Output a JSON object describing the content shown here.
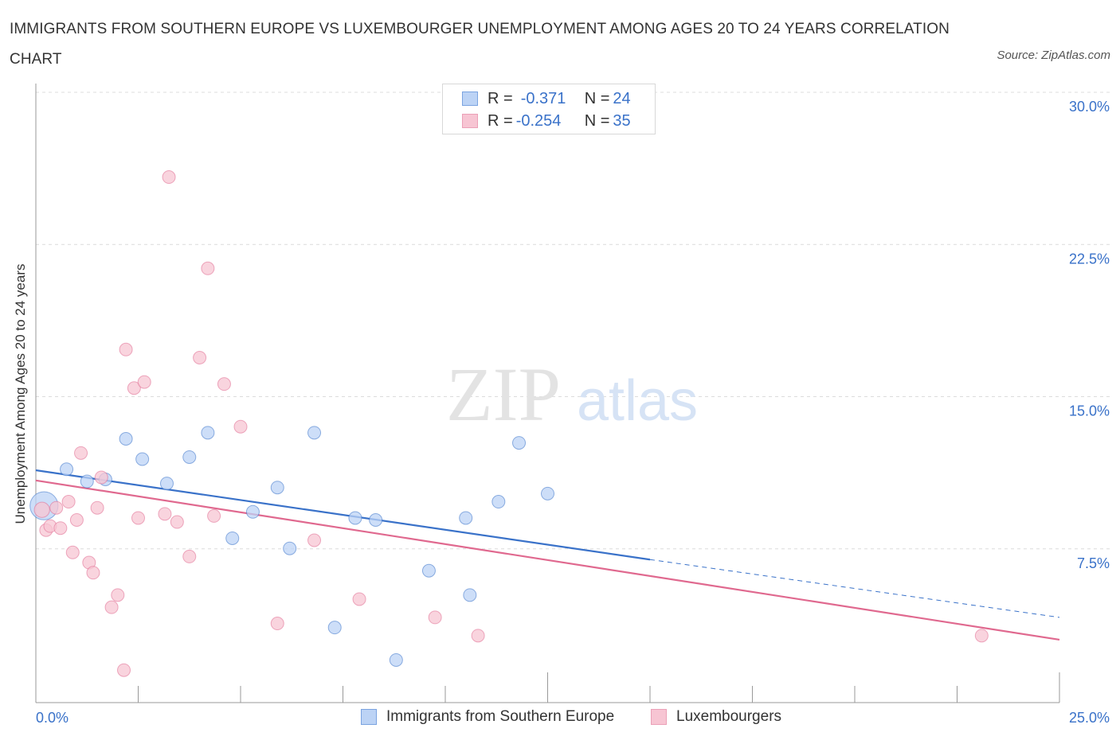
{
  "title": "IMMIGRANTS FROM SOUTHERN EUROPE VS LUXEMBOURGER UNEMPLOYMENT AMONG AGES 20 TO 24 YEARS CORRELATION CHART",
  "source": "Source: ZipAtlas.com",
  "watermark": {
    "zip": "ZIP",
    "atlas": "atlas"
  },
  "colors": {
    "blue": "#3a72c9",
    "blue_fill": "#bcd3f5",
    "pink": "#e0698f",
    "pink_fill": "#f7c5d3",
    "grid": "#dcdcdc",
    "axis": "#999999",
    "tick_text": "#3a72c9"
  },
  "legend": {
    "rows": [
      {
        "r_label": "R = ",
        "r_value": "-0.371",
        "n_label": "N = ",
        "n_value": "24"
      },
      {
        "r_label": "R = ",
        "r_value": "-0.254",
        "n_label": "N = ",
        "n_value": "35"
      }
    ]
  },
  "chart_data": {
    "type": "scatter",
    "xlabel": "",
    "ylabel": "Unemployment Among Ages 20 to 24 years",
    "xlim": [
      0,
      25
    ],
    "ylim": [
      0,
      30
    ],
    "x_tick_labels": [
      {
        "value": 0,
        "label": "0.0%"
      },
      {
        "value": 25,
        "label": "25.0%"
      }
    ],
    "y_tick_labels": [
      {
        "value": 7.5,
        "label": "7.5%"
      },
      {
        "value": 15,
        "label": "15.0%"
      },
      {
        "value": 22.5,
        "label": "22.5%"
      },
      {
        "value": 30,
        "label": "30.0%"
      }
    ],
    "grid": true,
    "legend_position": "top-center",
    "series": [
      {
        "name": "Immigrants from Southern Europe",
        "color": "#3a72c9",
        "fill": "#bcd3f5",
        "points": [
          [
            0.2,
            9.7,
            2.2
          ],
          [
            0.75,
            11.5,
            1
          ],
          [
            1.25,
            10.9,
            1
          ],
          [
            1.7,
            11.0,
            1
          ],
          [
            2.2,
            13.0,
            1
          ],
          [
            2.6,
            12.0,
            1
          ],
          [
            3.2,
            10.8,
            1
          ],
          [
            3.75,
            12.1,
            1
          ],
          [
            4.2,
            13.3,
            1
          ],
          [
            4.8,
            8.1,
            1
          ],
          [
            5.3,
            9.4,
            1
          ],
          [
            5.9,
            10.6,
            1
          ],
          [
            6.2,
            7.6,
            1
          ],
          [
            6.8,
            13.3,
            1
          ],
          [
            7.3,
            3.7,
            1
          ],
          [
            7.8,
            9.1,
            1
          ],
          [
            8.3,
            9.0,
            1
          ],
          [
            8.8,
            2.1,
            1
          ],
          [
            9.6,
            6.5,
            1
          ],
          [
            10.5,
            9.1,
            1
          ],
          [
            10.6,
            5.3,
            1
          ],
          [
            11.3,
            9.9,
            1
          ],
          [
            11.8,
            12.8,
            1
          ],
          [
            12.5,
            10.3,
            1
          ]
        ],
        "trend": {
          "x": [
            0,
            15
          ],
          "y": [
            11.45,
            7.05
          ],
          "dashed_to": [
            25,
            4.2
          ]
        }
      },
      {
        "name": "Luxembourgers",
        "color": "#e0698f",
        "fill": "#f7c5d3",
        "points": [
          [
            0.15,
            9.5,
            1.2
          ],
          [
            0.25,
            8.5,
            1
          ],
          [
            0.35,
            8.7,
            1
          ],
          [
            0.5,
            9.6,
            1
          ],
          [
            0.6,
            8.6,
            1
          ],
          [
            0.8,
            9.9,
            1
          ],
          [
            0.9,
            7.4,
            1
          ],
          [
            1.0,
            9.0,
            1
          ],
          [
            1.1,
            12.3,
            1
          ],
          [
            1.3,
            6.9,
            1
          ],
          [
            1.4,
            6.4,
            1
          ],
          [
            1.5,
            9.6,
            1
          ],
          [
            1.6,
            11.1,
            1
          ],
          [
            1.85,
            4.7,
            1
          ],
          [
            2.0,
            5.3,
            1
          ],
          [
            2.15,
            1.6,
            1
          ],
          [
            2.2,
            17.4,
            1
          ],
          [
            2.4,
            15.5,
            1
          ],
          [
            2.5,
            9.1,
            1
          ],
          [
            2.65,
            15.8,
            1
          ],
          [
            3.15,
            9.3,
            1
          ],
          [
            3.25,
            25.9,
            1
          ],
          [
            3.45,
            8.9,
            1
          ],
          [
            3.75,
            7.2,
            1
          ],
          [
            4.0,
            17.0,
            1
          ],
          [
            4.2,
            21.4,
            1
          ],
          [
            4.35,
            9.2,
            1
          ],
          [
            4.6,
            15.7,
            1
          ],
          [
            5.0,
            13.6,
            1
          ],
          [
            5.9,
            3.9,
            1
          ],
          [
            6.8,
            8.0,
            1
          ],
          [
            7.9,
            5.1,
            1
          ],
          [
            9.75,
            4.2,
            1
          ],
          [
            10.8,
            3.3,
            1
          ],
          [
            23.1,
            3.3,
            1
          ]
        ],
        "trend": {
          "x": [
            0,
            25
          ],
          "y": [
            10.95,
            3.1
          ]
        }
      }
    ]
  }
}
